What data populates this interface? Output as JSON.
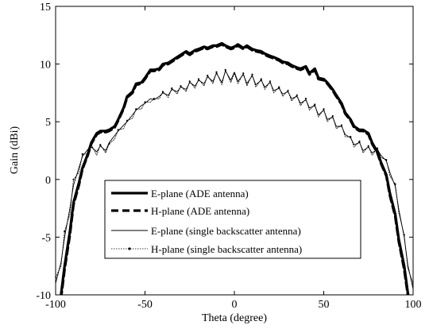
{
  "chart_data": {
    "type": "line",
    "xlabel": "Theta (degree)",
    "ylabel": "Gain (dBi)",
    "xlim": [
      -100,
      100
    ],
    "ylim": [
      -10,
      15
    ],
    "xticks": [
      -100,
      -50,
      0,
      50,
      100
    ],
    "yticks": [
      -10,
      -5,
      0,
      5,
      10,
      15
    ],
    "x_tick_labels": [
      "-100",
      "-50",
      "0",
      "50",
      "100"
    ],
    "y_tick_labels": [
      "-10",
      "-5",
      "0",
      "5",
      "10",
      "15"
    ],
    "grid": false,
    "legend_position": "lower-center",
    "series": [
      {
        "name": "E-plane (ADE antenna)",
        "style": "thick-solid",
        "x": [
          -100,
          -97,
          -95,
          -92,
          -90,
          -87,
          -85,
          -82,
          -80,
          -77,
          -75,
          -72,
          -70,
          -67,
          -65,
          -62,
          -60,
          -57,
          -55,
          -52,
          -50,
          -47,
          -45,
          -42,
          -40,
          -37,
          -35,
          -32,
          -30,
          -27,
          -25,
          -22,
          -20,
          -17,
          -15,
          -12,
          -10,
          -7,
          -5,
          -2,
          0,
          2,
          5,
          7,
          10,
          12,
          15,
          17,
          20,
          22,
          25,
          27,
          30,
          32,
          35,
          37,
          40,
          42,
          45,
          47,
          50,
          52,
          55,
          57,
          60,
          62,
          65,
          67,
          70,
          72,
          75,
          77,
          80,
          82,
          85,
          87,
          90,
          92,
          95,
          97,
          100
        ],
        "values": [
          -12,
          -10,
          -7.5,
          -4.5,
          -2,
          -0.3,
          1,
          2.2,
          3.2,
          4,
          4.2,
          4.2,
          4.3,
          4.6,
          5.2,
          6.2,
          7.2,
          7.6,
          8.3,
          8.4,
          8.8,
          9.5,
          9.5,
          9.6,
          10,
          10.1,
          10.3,
          10.6,
          10.8,
          11.1,
          10.9,
          11.2,
          11.3,
          11.5,
          11.4,
          11.6,
          11.6,
          11.8,
          11.6,
          11.4,
          11.5,
          11.7,
          11.4,
          11.6,
          11.3,
          11.2,
          11.1,
          10.9,
          10.7,
          10.6,
          10.4,
          10.2,
          10.1,
          9.9,
          9.7,
          9.6,
          9.8,
          9.2,
          9.6,
          8.8,
          8.7,
          8.4,
          7.8,
          7.3,
          6.6,
          5.8,
          5.2,
          4.6,
          4.3,
          4.3,
          4,
          3.2,
          2.4,
          1.5,
          0.4,
          -1.2,
          -3,
          -5.2,
          -7.5,
          -9.8,
          -12
        ]
      },
      {
        "name": "H-plane (ADE antenna)",
        "style": "thick-dashed",
        "x": [
          -100,
          -97,
          -95,
          -92,
          -90,
          -87,
          -85,
          -82,
          -80,
          -77,
          -75,
          -72,
          -70,
          -67,
          -65,
          -62,
          -60,
          -57,
          -55,
          -52,
          -50,
          -47,
          -45,
          -42,
          -40,
          -37,
          -35,
          -32,
          -30,
          -27,
          -25,
          -22,
          -20,
          -17,
          -15,
          -12,
          -10,
          -7,
          -5,
          -2,
          0,
          2,
          5,
          7,
          10,
          12,
          15,
          17,
          20,
          22,
          25,
          27,
          30,
          32,
          35,
          37,
          40,
          42,
          45,
          47,
          50,
          52,
          55,
          57,
          60,
          62,
          65,
          67,
          70,
          72,
          75,
          77,
          80,
          82,
          85,
          87,
          90,
          92,
          95,
          97,
          100
        ],
        "values": [
          -12.2,
          -10.3,
          -7.8,
          -4.8,
          -2.2,
          -0.5,
          0.9,
          2.1,
          3.1,
          3.9,
          4.1,
          4.1,
          4.2,
          4.5,
          5.1,
          6.1,
          7.1,
          7.5,
          8.2,
          8.3,
          8.7,
          9.4,
          9.4,
          9.5,
          9.9,
          10,
          10.2,
          10.5,
          10.7,
          11,
          10.8,
          11.1,
          11.2,
          11.4,
          11.3,
          11.5,
          11.5,
          11.7,
          11.5,
          11.3,
          11.4,
          11.6,
          11.3,
          11.5,
          11.2,
          11.1,
          11,
          10.8,
          10.6,
          10.5,
          10.3,
          10.1,
          10,
          9.8,
          9.6,
          9.5,
          9.7,
          9.1,
          9.5,
          8.7,
          8.6,
          8.3,
          7.7,
          7.2,
          6.5,
          5.7,
          5.1,
          4.5,
          4.2,
          4.2,
          3.9,
          3.1,
          2.3,
          1.4,
          0.3,
          -1.4,
          -3.2,
          -5.4,
          -7.8,
          -10,
          -12.2
        ]
      },
      {
        "name": "E-plane (single backscatter antenna)",
        "style": "thin-solid",
        "x": [
          -100,
          -97,
          -95,
          -92,
          -90,
          -87,
          -85,
          -82,
          -80,
          -77,
          -75,
          -72,
          -70,
          -67,
          -65,
          -62,
          -60,
          -57,
          -55,
          -52,
          -50,
          -47,
          -45,
          -42,
          -40,
          -37,
          -35,
          -32,
          -30,
          -27,
          -25,
          -22,
          -20,
          -17,
          -15,
          -12,
          -10,
          -7,
          -5,
          -2,
          0,
          2,
          5,
          7,
          10,
          12,
          15,
          17,
          20,
          22,
          25,
          27,
          30,
          32,
          35,
          37,
          40,
          42,
          45,
          47,
          50,
          52,
          55,
          57,
          60,
          62,
          65,
          67,
          70,
          72,
          75,
          77,
          80,
          82,
          85,
          87,
          90,
          92,
          95,
          97,
          100
        ],
        "values": [
          -9,
          -7.2,
          -5,
          -2.5,
          -0.5,
          1,
          2,
          2.6,
          2.8,
          2.4,
          2.9,
          2.5,
          3.2,
          3.8,
          4.2,
          4.7,
          5,
          5.6,
          6,
          6.4,
          6.6,
          7,
          6.9,
          7.2,
          7.5,
          7.3,
          7.8,
          7.6,
          8,
          7.8,
          8.4,
          8.1,
          8.6,
          8.3,
          8.9,
          8.5,
          9.2,
          8.4,
          9.4,
          8.6,
          9.3,
          8.5,
          9.1,
          8.3,
          9,
          8.2,
          8.6,
          8,
          8.4,
          7.7,
          7.9,
          7.4,
          7.6,
          7,
          7.2,
          6.6,
          6.9,
          6.2,
          6.4,
          5.6,
          6,
          5.2,
          5.4,
          4.6,
          4.6,
          3.9,
          3.6,
          3,
          3.2,
          2.5,
          2.8,
          2.3,
          2.6,
          2.1,
          1.6,
          0.6,
          -0.6,
          -2.6,
          -5,
          -7.4,
          -9.5
        ]
      },
      {
        "name": "H-plane (single backscatter antenna)",
        "style": "thin-dotted-markers",
        "x": [
          -100,
          -97,
          -95,
          -92,
          -90,
          -87,
          -85,
          -82,
          -80,
          -77,
          -75,
          -72,
          -70,
          -67,
          -65,
          -62,
          -60,
          -57,
          -55,
          -52,
          -50,
          -47,
          -45,
          -42,
          -40,
          -37,
          -35,
          -32,
          -30,
          -27,
          -25,
          -22,
          -20,
          -17,
          -15,
          -12,
          -10,
          -7,
          -5,
          -2,
          0,
          2,
          5,
          7,
          10,
          12,
          15,
          17,
          20,
          22,
          25,
          27,
          30,
          32,
          35,
          37,
          40,
          42,
          45,
          47,
          50,
          52,
          55,
          57,
          60,
          62,
          65,
          67,
          70,
          72,
          75,
          77,
          80,
          82,
          85,
          87,
          90,
          92,
          95,
          97,
          100
        ],
        "values": [
          -8.5,
          -7.5,
          -4.5,
          -3,
          0,
          0.6,
          2.2,
          2.2,
          3,
          2.1,
          3,
          2.3,
          3.1,
          3.5,
          4.3,
          4.4,
          5.1,
          5.3,
          6.1,
          6.1,
          6.7,
          6.7,
          7,
          7,
          7.6,
          7.1,
          7.9,
          7.4,
          8.1,
          7.6,
          8.5,
          7.9,
          8.7,
          8.1,
          9,
          8.3,
          9.3,
          8.2,
          9.5,
          8.4,
          9.2,
          8.3,
          9.2,
          8.1,
          9.1,
          8,
          8.7,
          7.8,
          8.5,
          7.5,
          8,
          7.2,
          7.7,
          6.8,
          7.3,
          6.4,
          7,
          6,
          6.5,
          5.4,
          6.1,
          5,
          5.5,
          4.4,
          4.7,
          3.7,
          3.7,
          2.8,
          3.3,
          2.3,
          2.9,
          2.1,
          2.7,
          1.9,
          1.7,
          0.3,
          -0.4,
          -2.9,
          -4.8,
          -7.7,
          -9
        ]
      }
    ]
  }
}
